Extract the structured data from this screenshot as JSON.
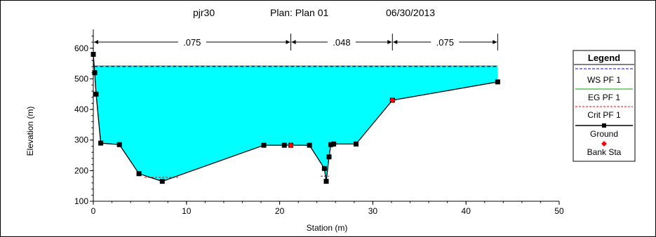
{
  "header": {
    "title": "pjr30",
    "plan": "Plan: Plan 01",
    "date": "06/30/2013"
  },
  "colors": {
    "water_fill": "#00FFFF",
    "ws": "#0000FF",
    "eg": "#00A000",
    "crit": "#FF0000",
    "ground": "#000000",
    "bank": "#FF0000"
  },
  "chart_data": {
    "type": "line",
    "xlabel": "Station (m)",
    "ylabel": "Elevation (m)",
    "xlim": [
      0,
      50
    ],
    "ylim": [
      100,
      650
    ],
    "x_ticks": [
      "0",
      "10",
      "20",
      "30",
      "40",
      "50"
    ],
    "y_ticks": [
      "100",
      "200",
      "300",
      "400",
      "500",
      "600"
    ],
    "water_surface": 540,
    "ground": {
      "x": [
        0,
        0.15,
        0.3,
        0.8,
        2.8,
        4.9,
        7.4,
        18.3,
        20.5,
        21.2,
        23.2,
        24.8,
        25.0,
        25.3,
        25.5,
        25.8,
        28.2,
        32.1,
        43.4
      ],
      "y": [
        580,
        520,
        450,
        290,
        285,
        190,
        165,
        283,
        283,
        283,
        283,
        207,
        165,
        245,
        285,
        287,
        287,
        430,
        490
      ]
    },
    "bank_stations": [
      {
        "x": 21.2,
        "y": 283
      },
      {
        "x": 32.1,
        "y": 430
      }
    ],
    "crit_segments": [
      {
        "x": [
          5.5,
          9.3
        ],
        "y": [
          178,
          178
        ]
      },
      {
        "x": [
          24.4,
          25.3
        ],
        "y": [
          182,
          182
        ]
      }
    ],
    "manning_n": [
      {
        "label": ".075",
        "from": 0,
        "to": 21.2
      },
      {
        "label": ".048",
        "from": 21.2,
        "to": 32.1
      },
      {
        "label": ".075",
        "from": 32.1,
        "to": 43.4
      }
    ],
    "legend": {
      "title": "Legend",
      "placement": "right",
      "entries": [
        "WS PF 1",
        "EG PF 1",
        "Crit PF 1",
        "Ground",
        "Bank Sta"
      ]
    }
  }
}
